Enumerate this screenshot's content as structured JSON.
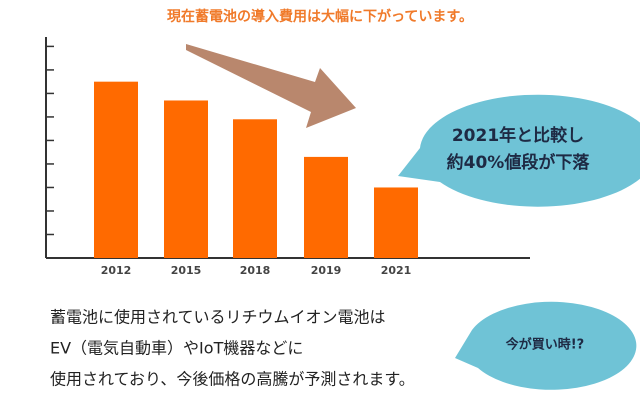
{
  "chart_data": {
    "type": "bar",
    "title": "現在蓄電池の導入費用は大幅に下がっています。",
    "categories": [
      "2012",
      "2015",
      "2018",
      "2019",
      "2021"
    ],
    "values": [
      7.5,
      6.7,
      5.9,
      4.3,
      3.0
    ],
    "color": "#ff6a00",
    "ylim": [
      0,
      9.4
    ],
    "yticks": [
      1,
      2,
      3,
      4,
      5,
      6,
      7,
      8,
      9
    ],
    "annotations": [
      "2021年と比較し",
      "約40%値段が下落",
      "今が買い時!?"
    ]
  },
  "text": [
    "蓄電池に使用されているリチウムイオン電池は",
    "EV（電気自動車）やIoT機器などに",
    "使用されており、今後価格の高騰が予測されます。"
  ]
}
